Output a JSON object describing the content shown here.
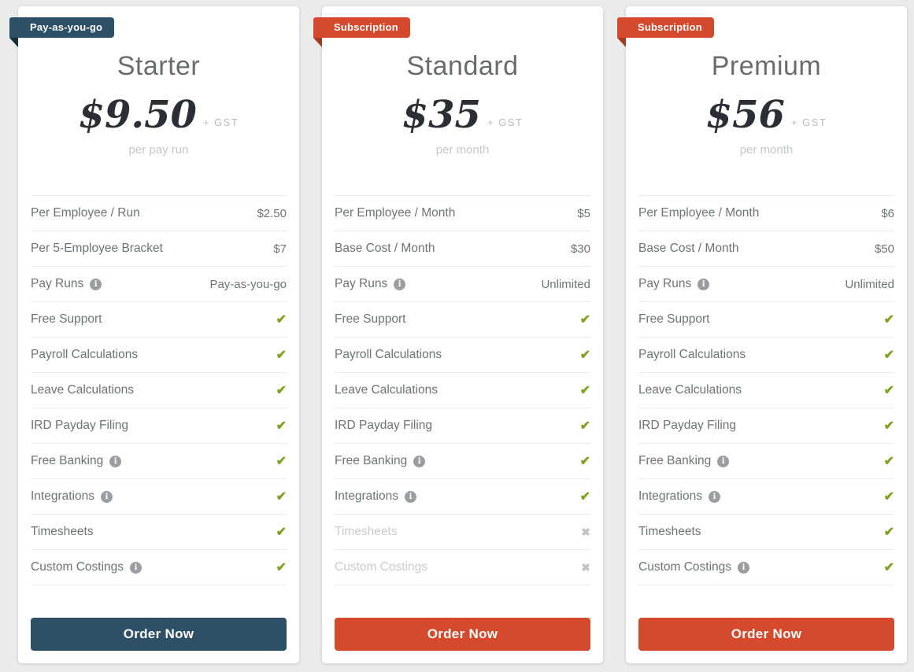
{
  "icons": {
    "check": "✔",
    "cross": "✖",
    "info": "i"
  },
  "colors": {
    "page_background": "#ebebeb",
    "card_background": "#ffffff",
    "teal": "#2e5066",
    "teal_fold": "#16303f",
    "red": "#d5492c",
    "red_fold": "#a73c1c",
    "check_green": "#7da221",
    "cross_gray": "#c3c3c3",
    "row_text": "#6e7276",
    "disabled_text": "#cbcbcb"
  },
  "cards": [
    {
      "id": "starter",
      "ribbon": {
        "label": "Pay-as-you-go",
        "color": "#2e5066",
        "fold_color": "#16303f"
      },
      "title": "Starter",
      "price": "$9.50",
      "price_suffix": "+ GST",
      "period": "per pay run",
      "rows": [
        {
          "label": "Per Employee / Run",
          "type": "text",
          "value": "$2.50"
        },
        {
          "label": "Per 5-Employee Bracket",
          "type": "text",
          "value": "$7"
        },
        {
          "label": "Pay Runs",
          "info": true,
          "type": "text",
          "value": "Pay-as-you-go"
        },
        {
          "label": "Free Support",
          "type": "check"
        },
        {
          "label": "Payroll Calculations",
          "type": "check"
        },
        {
          "label": "Leave Calculations",
          "type": "check"
        },
        {
          "label": "IRD Payday Filing",
          "type": "check"
        },
        {
          "label": "Free Banking",
          "info": true,
          "type": "check"
        },
        {
          "label": "Integrations",
          "info": true,
          "type": "check"
        },
        {
          "label": "Timesheets",
          "type": "check"
        },
        {
          "label": "Custom Costings",
          "info": true,
          "type": "check"
        }
      ],
      "button": {
        "label": "Order Now",
        "color": "#2e5066"
      }
    },
    {
      "id": "standard",
      "ribbon": {
        "label": "Subscription",
        "color": "#d5492c",
        "fold_color": "#a73c1c"
      },
      "title": "Standard",
      "price": "$35",
      "price_suffix": "+ GST",
      "period": "per month",
      "rows": [
        {
          "label": "Per Employee / Month",
          "type": "text",
          "value": "$5"
        },
        {
          "label": "Base Cost / Month",
          "type": "text",
          "value": "$30"
        },
        {
          "label": "Pay Runs",
          "info": true,
          "type": "text",
          "value": "Unlimited"
        },
        {
          "label": "Free Support",
          "type": "check"
        },
        {
          "label": "Payroll Calculations",
          "type": "check"
        },
        {
          "label": "Leave Calculations",
          "type": "check"
        },
        {
          "label": "IRD Payday Filing",
          "type": "check"
        },
        {
          "label": "Free Banking",
          "info": true,
          "type": "check"
        },
        {
          "label": "Integrations",
          "info": true,
          "type": "check"
        },
        {
          "label": "Timesheets",
          "type": "cross",
          "disabled": true
        },
        {
          "label": "Custom Costings",
          "type": "cross",
          "disabled": true
        }
      ],
      "button": {
        "label": "Order Now",
        "color": "#d5492c"
      }
    },
    {
      "id": "premium",
      "ribbon": {
        "label": "Subscription",
        "color": "#d5492c",
        "fold_color": "#a73c1c"
      },
      "title": "Premium",
      "price": "$56",
      "price_suffix": "+ GST",
      "period": "per month",
      "rows": [
        {
          "label": "Per Employee / Month",
          "type": "text",
          "value": "$6"
        },
        {
          "label": "Base Cost / Month",
          "type": "text",
          "value": "$50"
        },
        {
          "label": "Pay Runs",
          "info": true,
          "type": "text",
          "value": "Unlimited"
        },
        {
          "label": "Free Support",
          "type": "check"
        },
        {
          "label": "Payroll Calculations",
          "type": "check"
        },
        {
          "label": "Leave Calculations",
          "type": "check"
        },
        {
          "label": "IRD Payday Filing",
          "type": "check"
        },
        {
          "label": "Free Banking",
          "info": true,
          "type": "check"
        },
        {
          "label": "Integrations",
          "info": true,
          "type": "check"
        },
        {
          "label": "Timesheets",
          "type": "check"
        },
        {
          "label": "Custom Costings",
          "info": true,
          "type": "check"
        }
      ],
      "button": {
        "label": "Order Now",
        "color": "#d5492c"
      }
    }
  ]
}
